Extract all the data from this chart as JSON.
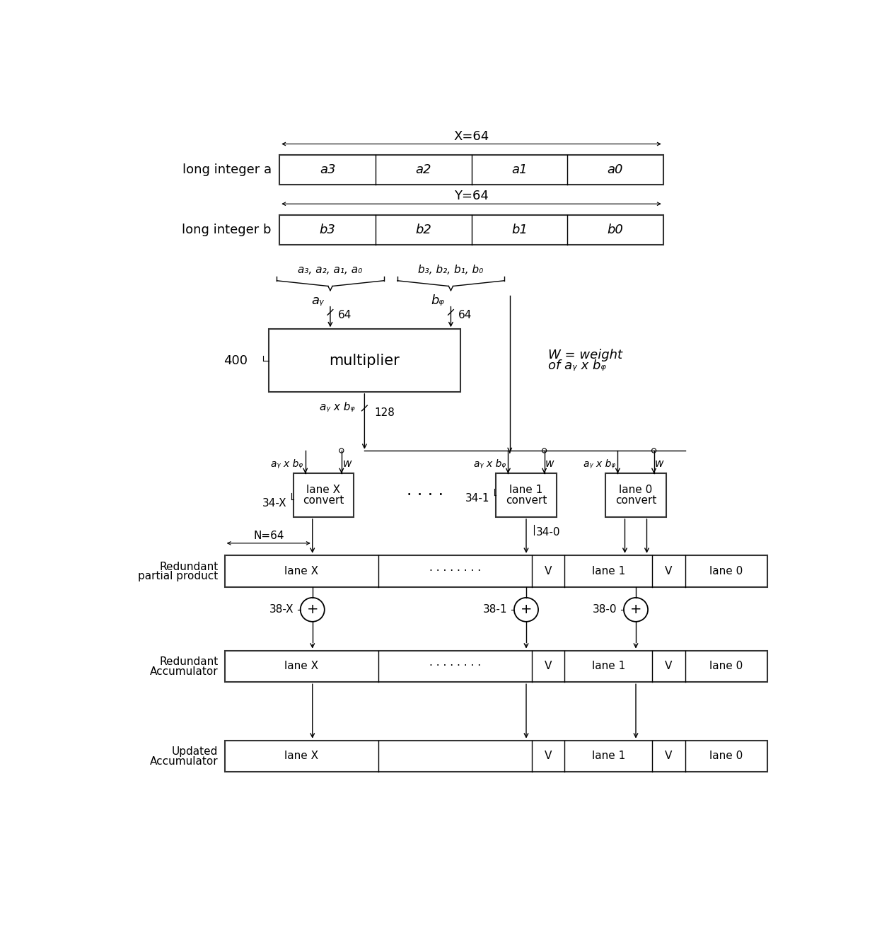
{
  "bg_color": "#ffffff",
  "box_edge_color": "#333333",
  "long_int_a_label": "long integer a",
  "long_int_b_label": "long integer b",
  "a_cells": [
    "a3",
    "a2",
    "a1",
    "a0"
  ],
  "b_cells": [
    "b3",
    "b2",
    "b1",
    "b0"
  ],
  "x_label": "X=64",
  "y_label": "Y=64",
  "multiplier_label": "multiplier",
  "mult_ref": "400",
  "a_group_label": "a₃, a₂, a₁, a₀",
  "b_group_label": "b₃, b₂, b₁, b₀",
  "ay_label": "aᵧ",
  "bz_label": "bᵩ",
  "w_weight_line1": "W = weight",
  "w_weight_line2": "of aᵧ x bᵩ",
  "lane_convert_labels": [
    "lane X\nconvert",
    "lane 1\nconvert",
    "lane 0\nconvert"
  ],
  "lane_convert_refs": [
    "34-X",
    "34-1",
    "34-0"
  ],
  "pp_label_line1": "Redundant",
  "pp_label_line2": "partial product",
  "adder_refs": [
    "38-X",
    "38-1",
    "38-0"
  ],
  "acc_label_line1": "Redundant",
  "acc_label_line2": "Accumulator",
  "upd_label_line1": "Updated",
  "upd_label_line2": "Accumulator"
}
